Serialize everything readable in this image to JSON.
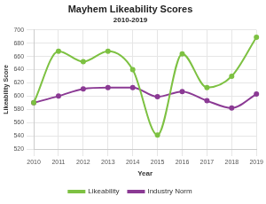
{
  "chart_data": {
    "type": "line",
    "title": "Mayhem Likeability Scores",
    "subtitle": "2010-2019",
    "x_label": "Year",
    "y_label": "Likeability Score",
    "categories": [
      "2010",
      "2011",
      "2012",
      "2013",
      "2014",
      "2015",
      "2016",
      "2017",
      "2018",
      "2019"
    ],
    "series": [
      {
        "name": "Likeability",
        "color": "#7dc142",
        "marker": "circle",
        "line_style": "solid",
        "values": [
          590,
          668,
          652,
          668,
          640,
          541,
          664,
          613,
          630,
          689
        ]
      },
      {
        "name": "Industry Norm",
        "color": "#8b3a94",
        "marker": "circle",
        "line_style": "solid",
        "values": [
          590,
          600,
          611,
          613,
          613,
          599,
          607,
          593,
          582,
          603
        ]
      }
    ],
    "ylim": [
      520,
      700
    ],
    "yticks": [
      520,
      540,
      560,
      580,
      600,
      620,
      640,
      660,
      680,
      700
    ],
    "grid": true,
    "legend": "bottom"
  }
}
